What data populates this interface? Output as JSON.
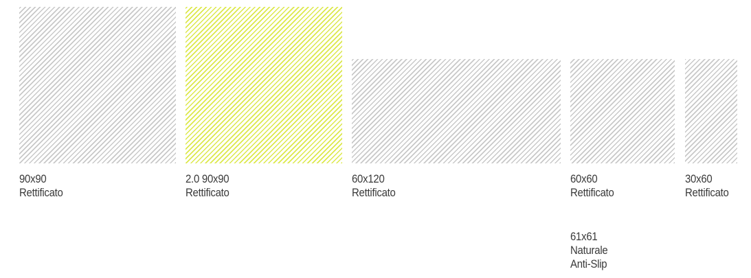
{
  "tiles": [
    {
      "id": "90x90",
      "size_label": "90x90",
      "finish_label": "Rettificato",
      "extra_lines": [],
      "stripe_color": "#c8c8c8",
      "highlighted": false
    },
    {
      "id": "2-0-90x90",
      "size_label": "2.0 90x90",
      "finish_label": "Rettificato",
      "extra_lines": [],
      "stripe_color": "#dce84a",
      "highlighted": true
    },
    {
      "id": "60x120",
      "size_label": "60x120",
      "finish_label": "Rettificato",
      "extra_lines": [],
      "stripe_color": "#c8c8c8",
      "highlighted": false
    },
    {
      "id": "60x60",
      "size_label": "60x60",
      "finish_label": "Rettificato",
      "extra_lines": [
        "61x61",
        "Naturale",
        "Anti-Slip"
      ],
      "stripe_color": "#c8c8c8",
      "highlighted": false
    },
    {
      "id": "30x60",
      "size_label": "30x60",
      "finish_label": "Rettificato",
      "extra_lines": [],
      "stripe_color": "#c8c8c8",
      "highlighted": false
    }
  ],
  "extra": {
    "size_label": "61x61",
    "finish_label": "Naturale",
    "note_label": "Anti-Slip"
  }
}
